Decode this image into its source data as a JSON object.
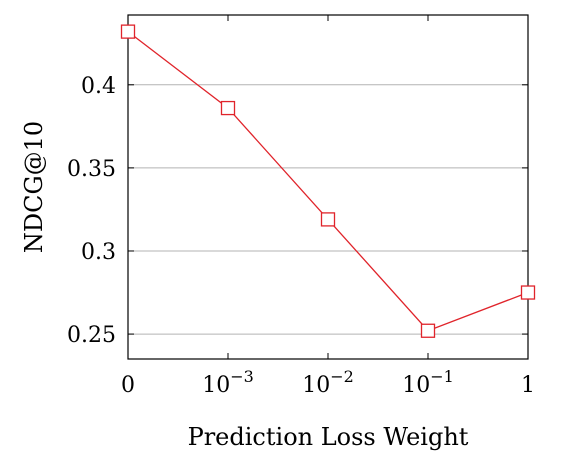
{
  "chart_data": {
    "type": "line",
    "title": "",
    "xlabel": "Prediction Loss Weight",
    "ylabel": "NDCG@10",
    "categories": [
      "0",
      "10^-3",
      "10^-2",
      "10^-1",
      "1"
    ],
    "x_tick_labels": [
      {
        "base": "0",
        "exp": ""
      },
      {
        "base": "10",
        "exp": "−3"
      },
      {
        "base": "10",
        "exp": "−2"
      },
      {
        "base": "10",
        "exp": "−1"
      },
      {
        "base": "1",
        "exp": ""
      }
    ],
    "series": [
      {
        "values": [
          0.432,
          0.386,
          0.319,
          0.252,
          0.275
        ],
        "color": "#e0242b",
        "marker": "square"
      }
    ],
    "y_ticks": [
      0.25,
      0.3,
      0.35,
      0.4
    ],
    "y_tick_labels": [
      "0.25",
      "0.3",
      "0.35",
      "0.4"
    ],
    "ylim": [
      0.235,
      0.442
    ],
    "grid": "horizontal",
    "legend": "none"
  }
}
